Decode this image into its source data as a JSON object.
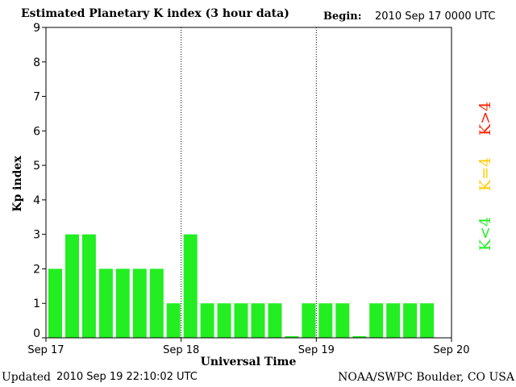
{
  "header": {
    "title": "Estimated Planetary K index (3 hour data)",
    "begin_label": "Begin:",
    "begin_value": "2010 Sep 17 0000 UTC"
  },
  "footer": {
    "updated_label": "Updated",
    "updated_value": "2010 Sep 19 22:10:02 UTC",
    "credit": "NOAA/SWPC Boulder, CO USA"
  },
  "colors": {
    "low": "#22ee22",
    "moderate": "#ffcc00",
    "storm": "#ff2200",
    "axis": "#000000"
  },
  "chart_data": {
    "type": "bar",
    "title": "Estimated Planetary K index (3 hour data)",
    "xlabel": "Universal Time",
    "ylabel": "Kp index",
    "ylim": [
      0,
      9
    ],
    "yticks": [
      0,
      1,
      2,
      3,
      4,
      5,
      6,
      7,
      8,
      9
    ],
    "xticks": [
      "Sep 17",
      "Sep 18",
      "Sep 19",
      "Sep 20"
    ],
    "day_separators": [
      "Sep 18",
      "Sep 19"
    ],
    "bars_per_day": 8,
    "values": [
      2,
      3,
      3,
      2,
      2,
      2,
      2,
      1,
      3,
      1,
      1,
      1,
      1,
      1,
      0.05,
      1,
      1,
      1,
      0.05,
      1,
      1,
      1,
      1
    ],
    "legend": [
      {
        "label": "K<4",
        "color": "#22ee22"
      },
      {
        "label": "K=4",
        "color": "#ffcc00"
      },
      {
        "label": "K>4",
        "color": "#ff2200"
      }
    ],
    "legend_placement": "right"
  }
}
